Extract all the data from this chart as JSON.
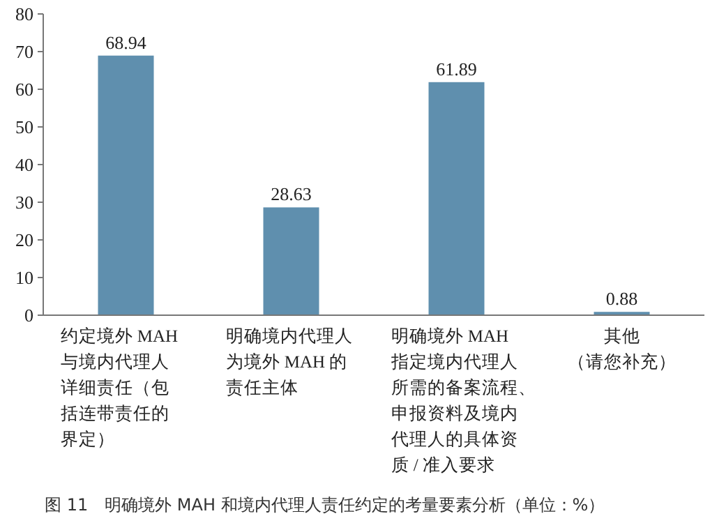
{
  "chart_data": {
    "type": "bar",
    "categories": [
      "约定境外 MAH与境内代理人详细责任（包括连带责任的界定）",
      "明确境内代理人为境外 MAH 的责任主体",
      "明确境外 MAH指定境内代理人所需的备案流程、申报资料及境内代理人的具体资质 / 准入要求",
      "其他（请您补充）"
    ],
    "values": [
      68.94,
      28.63,
      61.89,
      0.88
    ],
    "value_labels": [
      "68.94",
      "28.63",
      "61.89",
      "0.88"
    ],
    "color": "#5f8fae",
    "ylim": [
      0,
      80
    ],
    "yticks": [
      0,
      10,
      20,
      30,
      40,
      50,
      60,
      70,
      80
    ],
    "grid": false,
    "annotations": [
      "图 11　明确境外 MAH 和境内代理人责任约定的考量要素分析（单位：%）"
    ]
  }
}
